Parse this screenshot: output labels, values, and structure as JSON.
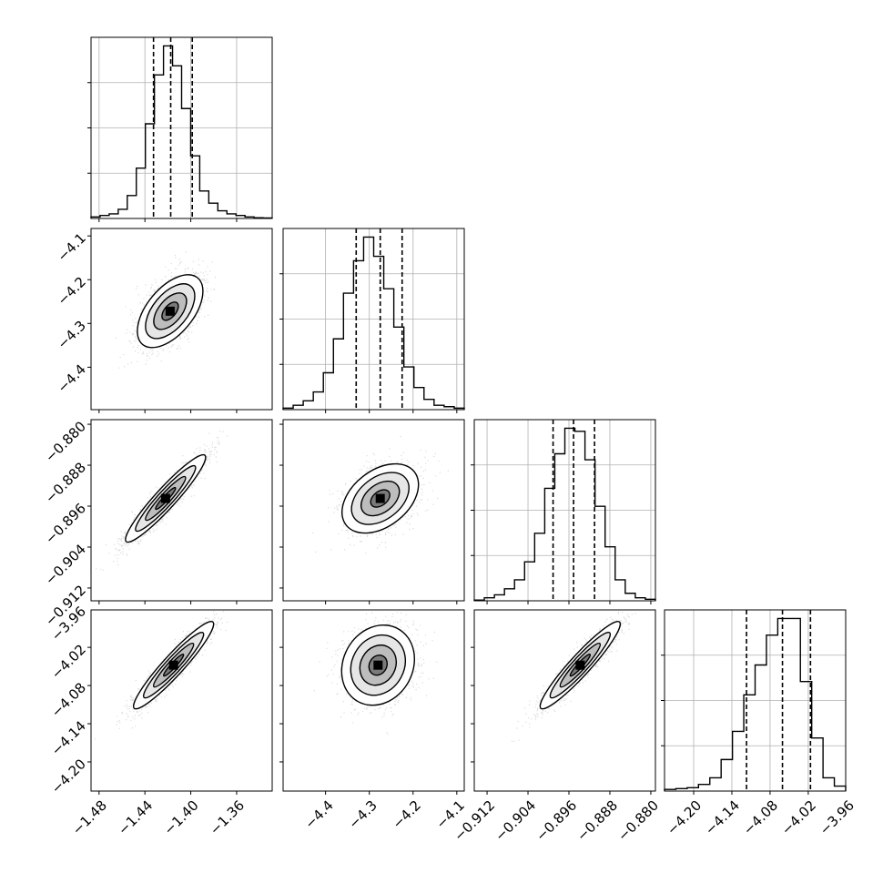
{
  "chart_data": {
    "type": "corner",
    "title": "",
    "parameters": [
      {
        "range": [
          -1.487,
          -1.329
        ],
        "ticks": [
          -1.48,
          -1.44,
          -1.4,
          -1.36
        ],
        "tick_labels": [
          "−1.48",
          "−1.44",
          "−1.40",
          "−1.36"
        ],
        "quantiles": [
          -1.4325,
          -1.4175,
          -1.3987
        ],
        "hist": [
          1,
          2,
          3,
          6,
          15,
          33,
          62,
          94,
          113,
          100,
          72,
          41,
          18,
          10,
          5,
          3,
          2,
          1,
          0.5,
          0.3
        ]
      },
      {
        "range": [
          -4.497,
          -4.083
        ],
        "ticks": [
          -4.4,
          -4.3,
          -4.2,
          -4.1
        ],
        "tick_labels": [
          "−4.4",
          "−4.3",
          "−4.2",
          "−4.1"
        ],
        "quantiles": [
          -4.33,
          -4.275,
          -4.225
        ],
        "hist": [
          1,
          3,
          6,
          12,
          25,
          48,
          79,
          101,
          117,
          104,
          82,
          56,
          29,
          15,
          7,
          3,
          2,
          1
        ]
      },
      {
        "range": [
          -0.9145,
          -0.8791
        ],
        "ticks": [
          -0.88,
          -0.888,
          -0.896,
          -0.904,
          -0.912
        ],
        "tick_labels": [
          "−0.880",
          "−0.888",
          "−0.896",
          "−0.904",
          "−0.912"
        ],
        "quantiles": [
          -0.8991,
          -0.8951,
          -0.891
        ],
        "hist": [
          0.5,
          2,
          4,
          8,
          14,
          26,
          45,
          75,
          98,
          115,
          113,
          94,
          63,
          36,
          14,
          5,
          2,
          1
        ]
      },
      {
        "range": [
          -4.2458,
          -3.9612
        ],
        "ticks": [
          -4.2,
          -4.14,
          -4.08,
          -4.02,
          -3.96
        ],
        "tick_labels": [
          "−4.20",
          "−4.14",
          "−4.08",
          "−4.02",
          "−3.96"
        ],
        "quantiles": [
          -4.117,
          -4.0605,
          -4.0165
        ],
        "hist": [
          1,
          1.5,
          2,
          4,
          8,
          19,
          36,
          58,
          76,
          94,
          104,
          104,
          66,
          32,
          8,
          3
        ]
      }
    ],
    "pair_modes": [
      {
        "row": 1,
        "col": 0,
        "x": -1.418,
        "y": -4.272
      },
      {
        "row": 2,
        "col": 0,
        "x": -1.422,
        "y": -0.8945
      },
      {
        "row": 2,
        "col": 1,
        "x": -4.275,
        "y": -0.8945
      },
      {
        "row": 3,
        "col": 0,
        "x": -1.415,
        "y": -4.048
      },
      {
        "row": 3,
        "col": 1,
        "x": -4.28,
        "y": -4.048
      },
      {
        "row": 3,
        "col": 2,
        "x": -0.8938,
        "y": -4.048
      }
    ]
  }
}
